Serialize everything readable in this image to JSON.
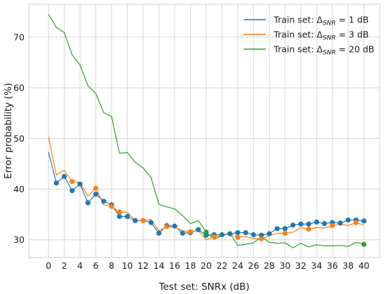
{
  "chart_data": {
    "type": "line",
    "xlabel": "Test set: SNRx (dB)",
    "ylabel": "Error probability (%)",
    "xlim": [
      -2.5,
      42
    ],
    "ylim": [
      26.5,
      76.5
    ],
    "xticks": [
      0,
      2,
      4,
      6,
      8,
      10,
      12,
      14,
      16,
      18,
      20,
      22,
      24,
      26,
      28,
      30,
      32,
      34,
      36,
      38,
      40
    ],
    "yticks": [
      30,
      40,
      50,
      60,
      70
    ],
    "grid": true,
    "legend_position": "top-right",
    "x": [
      0,
      1,
      2,
      3,
      4,
      5,
      6,
      7,
      8,
      9,
      10,
      11,
      12,
      13,
      14,
      15,
      16,
      17,
      18,
      19,
      20,
      21,
      22,
      23,
      24,
      25,
      26,
      27,
      28,
      29,
      30,
      31,
      32,
      33,
      34,
      35,
      36,
      37,
      38,
      39,
      40
    ],
    "series": [
      {
        "name": "Train set: ΔSNR = 1 dB",
        "name_main": "Train set: Δ",
        "name_sub": "SNR",
        "name_rest": " = 1 dB",
        "color": "#1f77b4",
        "values": [
          47.3,
          41.2,
          42.5,
          39.7,
          41.0,
          37.3,
          39.0,
          37.6,
          36.9,
          34.6,
          34.6,
          33.8,
          33.8,
          33.4,
          31.3,
          32.8,
          32.7,
          31.3,
          31.4,
          32.0,
          30.9,
          31.0,
          31.0,
          31.2,
          31.4,
          31.4,
          31.0,
          30.9,
          31.2,
          32.2,
          32.2,
          32.9,
          33.1,
          33.1,
          33.5,
          33.2,
          33.4,
          33.3,
          33.9,
          33.9,
          33.7
        ],
        "markers": [
          1,
          2,
          3,
          4,
          5,
          6,
          7,
          8,
          9,
          10,
          11,
          12,
          13,
          14,
          15,
          16,
          17,
          18,
          19,
          20,
          21,
          22,
          23,
          24,
          25,
          26,
          27,
          28,
          29,
          30,
          31,
          32,
          33,
          34,
          35,
          36,
          37,
          38,
          39,
          40
        ]
      },
      {
        "name": "Train set: ΔSNR = 3 dB",
        "name_main": "Train set: Δ",
        "name_sub": "SNR",
        "name_rest": " = 3 dB",
        "color": "#ff7f0e",
        "values": [
          50.3,
          42.8,
          43.7,
          41.5,
          41.3,
          38.6,
          40.2,
          36.9,
          36.6,
          35.5,
          35.4,
          33.9,
          33.8,
          34.0,
          31.8,
          32.6,
          32.5,
          31.8,
          31.6,
          31.8,
          30.0,
          30.6,
          30.8,
          31.3,
          30.5,
          30.6,
          30.3,
          30.2,
          30.8,
          31.3,
          31.3,
          31.5,
          32.4,
          32.1,
          32.4,
          32.3,
          32.8,
          33.1,
          32.8,
          33.4,
          32.9
        ],
        "markers": [
          3,
          6,
          8,
          9,
          12,
          15,
          18,
          21,
          24,
          27,
          30,
          33,
          36,
          39
        ]
      },
      {
        "name": "Train set: ΔSNR = 20 dB",
        "name_main": "Train set: Δ",
        "name_sub": "SNR",
        "name_rest": " = 20 dB",
        "color": "#2ca02c",
        "values": [
          74.5,
          71.9,
          70.9,
          66.5,
          64.5,
          60.4,
          58.9,
          55.1,
          54.3,
          47.1,
          47.2,
          45.3,
          44.2,
          42.3,
          37.0,
          36.5,
          36.1,
          34.8,
          33.2,
          33.8,
          31.5,
          30.1,
          30.8,
          31.3,
          28.9,
          29.1,
          29.4,
          30.6,
          29.5,
          29.3,
          29.4,
          28.4,
          29.3,
          28.6,
          29.0,
          28.8,
          28.8,
          28.9,
          28.7,
          29.5,
          29.1
        ],
        "markers": [
          20,
          40
        ]
      }
    ]
  }
}
